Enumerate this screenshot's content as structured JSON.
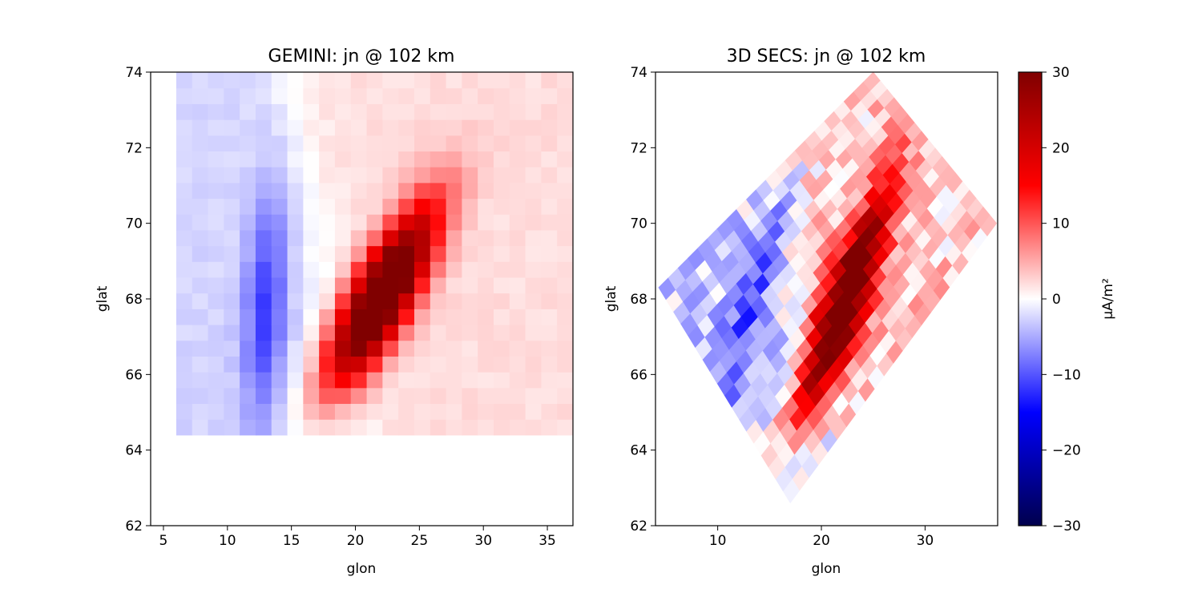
{
  "chart_data": [
    {
      "type": "heatmap",
      "title": "GEMINI: jn @ 102 km",
      "xlabel": "glon",
      "ylabel": "glat",
      "xlim": [
        4,
        37
      ],
      "ylim": [
        62,
        74
      ],
      "xticks": [
        5,
        10,
        15,
        20,
        25,
        30,
        35
      ],
      "yticks": [
        62,
        64,
        66,
        68,
        70,
        72,
        74
      ],
      "grid": false,
      "colormap": "seismic",
      "clim": [
        -30,
        30
      ],
      "field": {
        "grid_lon_range": [
          6,
          37
        ],
        "grid_lat_range": [
          64.4,
          74
        ],
        "positive_ellipse": {
          "center": [
            22,
            68.05
          ],
          "peak": 40,
          "semi_axes": [
            4.6,
            1.25
          ],
          "rotation_deg": 26
        },
        "negative_lobe": {
          "center": [
            13,
            67.8
          ],
          "peak": -9,
          "semi_axes": [
            3.2,
            1.6
          ],
          "rotation_deg": 80
        },
        "background_east": 2,
        "background_west": -2.5
      }
    },
    {
      "type": "heatmap",
      "title": "3D SECS: jn @ 102 km",
      "xlabel": "glon",
      "ylabel": "glat",
      "xlim": [
        4,
        37
      ],
      "ylim": [
        62,
        74
      ],
      "xticks": [
        10,
        20,
        30
      ],
      "yticks": [
        62,
        64,
        66,
        68,
        70,
        72,
        74
      ],
      "grid": false,
      "colormap": "seismic",
      "clim": [
        -30,
        30
      ],
      "field": {
        "domain_corners": [
          [
            4.3,
            68.3
          ],
          [
            25,
            74
          ],
          [
            36.9,
            70
          ],
          [
            17,
            62.6
          ]
        ],
        "positive_ellipse": {
          "center": [
            22,
            67.75
          ],
          "peak": 38,
          "semi_axes": [
            5.2,
            1.25
          ],
          "rotation_deg": 32
        },
        "negative_band": {
          "center": [
            13,
            67.8
          ],
          "peak": -8,
          "semi_axes": [
            6,
            1.2
          ],
          "rotation_deg": 40
        },
        "background_east": 3,
        "background_west": -3,
        "noise_amplitude": 4
      }
    }
  ],
  "colorbar": {
    "label": "μA/m²",
    "ticks": [
      -30,
      -20,
      -10,
      0,
      10,
      20,
      30
    ],
    "tick_labels": [
      "−30",
      "−20",
      "−10",
      "0",
      "10",
      "20",
      "30"
    ]
  }
}
